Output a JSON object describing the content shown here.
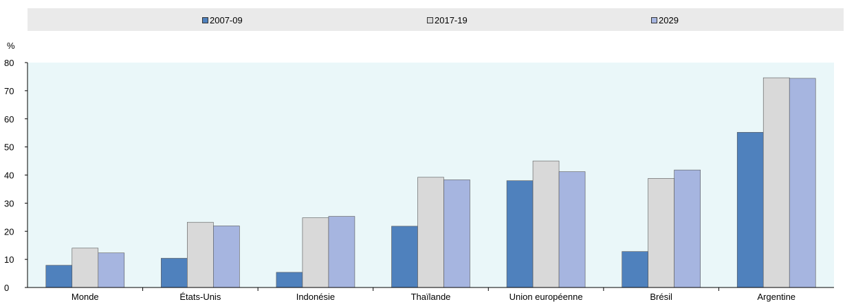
{
  "chart_data": {
    "type": "bar",
    "title": "",
    "xlabel": "",
    "ylabel": "%",
    "ylim": [
      0,
      80
    ],
    "yticks": [
      0,
      10,
      20,
      30,
      40,
      50,
      60,
      70,
      80
    ],
    "categories": [
      "Monde",
      "États-Unis",
      "Indonésie",
      "Thaïlande",
      "Union européenne",
      "Brésil",
      "Argentine"
    ],
    "series": [
      {
        "name": "2007-09",
        "color": "#4f81bd",
        "values": [
          7.9,
          10.4,
          5.4,
          21.8,
          38.0,
          12.8,
          55.2
        ]
      },
      {
        "name": "2017-19",
        "color": "#d9d9d9",
        "values": [
          14.0,
          23.2,
          24.8,
          39.2,
          45.0,
          38.8,
          74.6
        ]
      },
      {
        "name": "2029",
        "color": "#a6b5e0",
        "values": [
          12.3,
          21.9,
          25.3,
          38.3,
          41.2,
          41.8,
          74.4
        ]
      }
    ],
    "grid": false,
    "legend_position": "top",
    "plot_background": "#eaf7f9"
  }
}
